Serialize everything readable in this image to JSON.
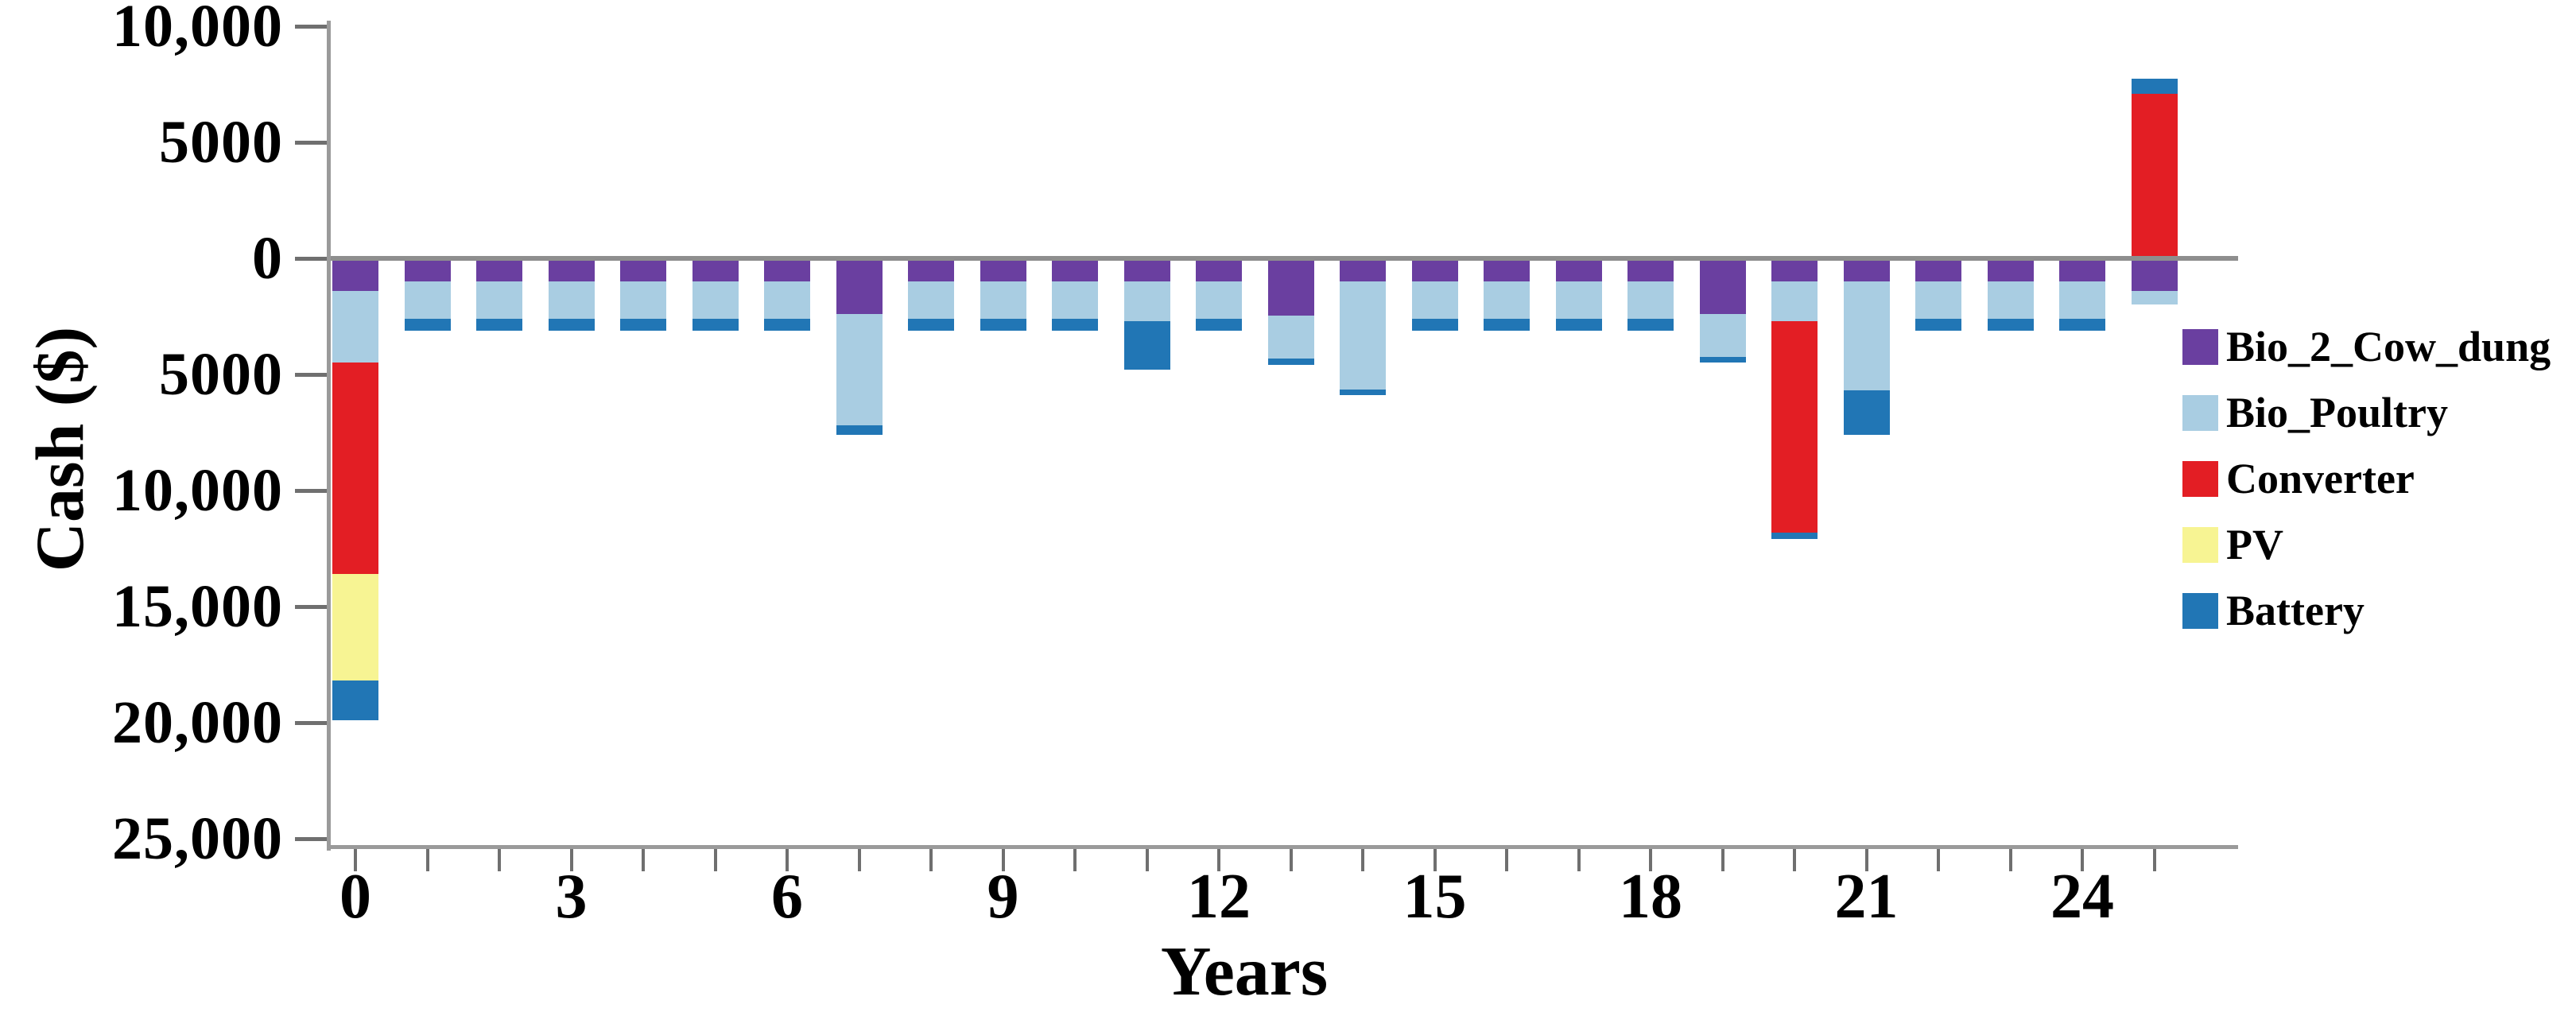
{
  "axes": {
    "y_title": "Cash ($)",
    "x_title": "Years",
    "y_ticks": [
      {
        "value": 10000,
        "label": "10,000"
      },
      {
        "value": 5000,
        "label": "5000"
      },
      {
        "value": 0,
        "label": "0"
      },
      {
        "value": -5000,
        "label": "5000"
      },
      {
        "value": -10000,
        "label": "10,000"
      },
      {
        "value": -15000,
        "label": "15,000"
      },
      {
        "value": -20000,
        "label": "20,000"
      },
      {
        "value": -25000,
        "label": "25,000"
      }
    ],
    "x_ticks": [
      0,
      1,
      2,
      3,
      4,
      5,
      6,
      7,
      8,
      9,
      10,
      11,
      12,
      13,
      14,
      15,
      16,
      17,
      18,
      19,
      20,
      21,
      22,
      23,
      24,
      25
    ],
    "x_labeled_ticks": [
      0,
      3,
      6,
      9,
      12,
      15,
      18,
      21,
      24
    ]
  },
  "legend": [
    {
      "key": "bio_2_cow_dung",
      "label": "Bio_2_Cow_dung",
      "color": "#6a3fa0"
    },
    {
      "key": "bio_poultry",
      "label": "Bio_Poultry",
      "color": "#a9cde2"
    },
    {
      "key": "converter",
      "label": "Converter",
      "color": "#e31e24"
    },
    {
      "key": "pv",
      "label": "PV",
      "color": "#f7f493"
    },
    {
      "key": "battery",
      "label": "Battery",
      "color": "#2176b5"
    }
  ],
  "chart_data": {
    "type": "bar",
    "stacked": true,
    "title": "",
    "xlabel": "Years",
    "ylabel": "Cash ($)",
    "x": [
      0,
      1,
      2,
      3,
      4,
      5,
      6,
      7,
      8,
      9,
      10,
      11,
      12,
      13,
      14,
      15,
      16,
      17,
      18,
      19,
      20,
      21,
      22,
      23,
      24,
      25
    ],
    "ylim": [
      -25000,
      10000
    ],
    "grid": false,
    "legend_position": "right",
    "y_tick_step": 5000,
    "y_tick_label_style": "absolute value, no minus sign",
    "series": [
      {
        "name": "Bio_2_Cow_dung",
        "color": "#6a3fa0",
        "values": [
          -1400,
          -1000,
          -1000,
          -1000,
          -1000,
          -1000,
          -1000,
          -2400,
          -1000,
          -1000,
          -1000,
          -1000,
          -1000,
          -2450,
          -1000,
          -1000,
          -1000,
          -1000,
          -1000,
          -2400,
          -1000,
          -1000,
          -1000,
          -1000,
          -1000,
          -1400
        ]
      },
      {
        "name": "Bio_Poultry",
        "color": "#a9cde2",
        "values": [
          -3100,
          -1600,
          -1600,
          -1600,
          -1600,
          -1600,
          -1600,
          -4800,
          -1600,
          -1600,
          -1600,
          -1700,
          -1600,
          -1850,
          -4650,
          -1600,
          -1600,
          -1600,
          -1600,
          -1850,
          -1700,
          -4700,
          -1600,
          -1600,
          -1600,
          -600
        ]
      },
      {
        "name": "Converter",
        "color": "#e31e24",
        "values": [
          -9100,
          0,
          0,
          0,
          0,
          0,
          0,
          0,
          0,
          0,
          0,
          0,
          0,
          0,
          0,
          0,
          0,
          0,
          0,
          0,
          -9100,
          0,
          0,
          0,
          0,
          7100
        ]
      },
      {
        "name": "PV",
        "color": "#f7f493",
        "values": [
          -4600,
          0,
          0,
          0,
          0,
          0,
          0,
          0,
          0,
          0,
          0,
          0,
          0,
          0,
          0,
          0,
          0,
          0,
          0,
          0,
          0,
          0,
          0,
          0,
          0,
          0
        ]
      },
      {
        "name": "Battery",
        "color": "#2176b5",
        "values": [
          -1700,
          -500,
          -500,
          -500,
          -500,
          -500,
          -500,
          -400,
          -500,
          -500,
          -500,
          -2100,
          -500,
          -300,
          -250,
          -500,
          -500,
          -500,
          -500,
          -250,
          -300,
          -1900,
          -500,
          -500,
          -500,
          650
        ]
      }
    ]
  }
}
